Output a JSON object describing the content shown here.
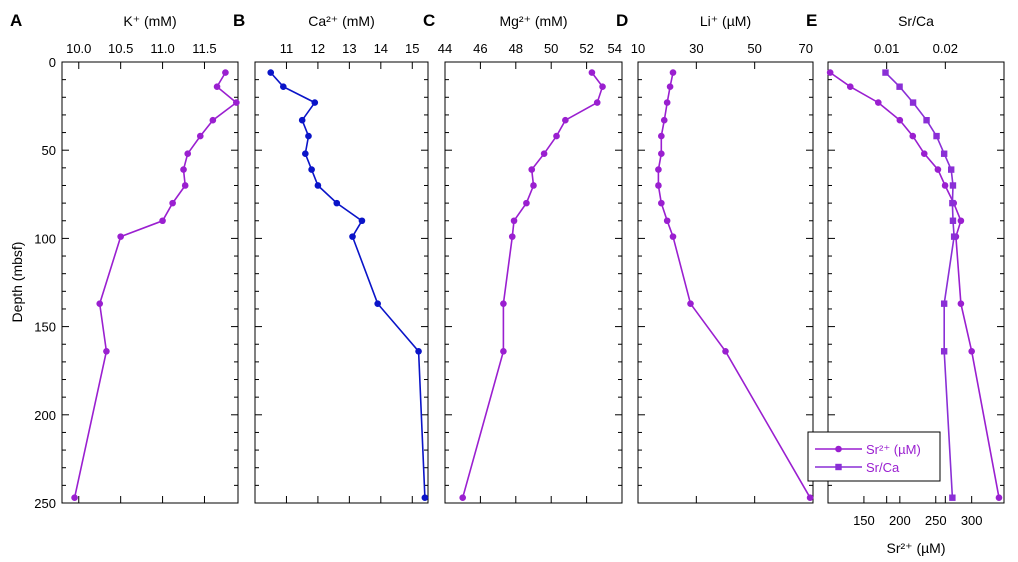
{
  "figure": {
    "y_axis_label": "Depth (mbsf)",
    "y_ticks": [
      0,
      50,
      100,
      150,
      200,
      250
    ]
  },
  "colors": {
    "purple": "#9a1fd0",
    "blue": "#0a14c8",
    "legend_text": "#9a1fd0"
  },
  "chart_data": [
    {
      "type": "line",
      "panel": "A",
      "title": "K⁺ (mM)",
      "xlim": [
        9.8,
        11.9
      ],
      "ylim": [
        250,
        0
      ],
      "x_ticks": [
        "10.0",
        "10.5",
        "11.0",
        "11.5"
      ],
      "series": [
        {
          "color": "#9a1fd0",
          "marker": "circle",
          "x": [
            11.75,
            11.65,
            11.88,
            11.6,
            11.45,
            11.3,
            11.25,
            11.27,
            11.12,
            11.0,
            10.5,
            10.25,
            10.33,
            9.95
          ],
          "y": [
            6,
            14,
            23,
            33,
            42,
            52,
            61,
            70,
            80,
            90,
            99,
            137,
            164,
            247
          ]
        }
      ]
    },
    {
      "type": "line",
      "panel": "B",
      "title": "Ca²⁺ (mM)",
      "xlim": [
        10.0,
        15.5
      ],
      "ylim": [
        250,
        0
      ],
      "x_ticks": [
        "11",
        "12",
        "13",
        "14",
        "15"
      ],
      "series": [
        {
          "color": "#0a14c8",
          "marker": "circle",
          "x": [
            10.5,
            10.9,
            11.9,
            11.5,
            11.7,
            11.6,
            11.8,
            12.0,
            12.6,
            13.4,
            13.1,
            13.9,
            15.2,
            15.4
          ],
          "y": [
            6,
            14,
            23,
            33,
            42,
            52,
            61,
            70,
            80,
            90,
            99,
            137,
            164,
            247
          ]
        }
      ]
    },
    {
      "type": "line",
      "panel": "C",
      "title": "Mg²⁺ (mM)",
      "xlim": [
        44,
        54
      ],
      "ylim": [
        250,
        0
      ],
      "x_ticks": [
        "44",
        "46",
        "48",
        "50",
        "52",
        "54"
      ],
      "series": [
        {
          "color": "#9a1fd0",
          "marker": "circle",
          "x": [
            52.3,
            52.9,
            52.6,
            50.8,
            50.3,
            49.6,
            48.9,
            49.0,
            48.6,
            47.9,
            47.8,
            47.3,
            47.3,
            45.0
          ],
          "y": [
            6,
            14,
            23,
            33,
            42,
            52,
            61,
            70,
            80,
            90,
            99,
            137,
            164,
            247
          ]
        }
      ]
    },
    {
      "type": "line",
      "panel": "D",
      "title": "Li⁺ (µM)",
      "xlim": [
        10,
        70
      ],
      "ylim": [
        250,
        0
      ],
      "x_ticks": [
        "10",
        "30",
        "50",
        "70"
      ],
      "series": [
        {
          "color": "#9a1fd0",
          "marker": "circle",
          "x": [
            22,
            21,
            20,
            19,
            18,
            18,
            17,
            17,
            18,
            20,
            22,
            28,
            40,
            69
          ],
          "y": [
            6,
            14,
            23,
            33,
            42,
            52,
            61,
            70,
            80,
            90,
            99,
            137,
            164,
            247
          ]
        }
      ]
    },
    {
      "type": "line",
      "panel": "E",
      "title": "Sr/Ca",
      "x2label": "Sr²⁺ (µM)",
      "xlim_top": [
        0.0,
        0.03
      ],
      "xlim_bottom": [
        100,
        345
      ],
      "ylim": [
        250,
        0
      ],
      "x_ticks_top": [
        "0.01",
        "0.02"
      ],
      "x_ticks_bottom": [
        "150",
        "200",
        "250",
        "300"
      ],
      "legend_position": "lower-right",
      "series": [
        {
          "name": "Sr²⁺ (µM)",
          "axis": "bottom",
          "color": "#9a1fd0",
          "marker": "circle",
          "x": [
            103,
            131,
            170,
            200,
            218,
            234,
            253,
            263,
            275,
            285,
            278,
            285,
            300,
            338
          ],
          "y": [
            6,
            14,
            23,
            33,
            42,
            52,
            61,
            70,
            80,
            90,
            99,
            137,
            164,
            247
          ]
        },
        {
          "name": "Sr/Ca",
          "axis": "top",
          "color": "#8a2fd6",
          "marker": "square",
          "x": [
            0.0098,
            0.0122,
            0.0145,
            0.0168,
            0.0185,
            0.0198,
            0.021,
            0.0213,
            0.0212,
            0.0213,
            0.0215,
            0.0198,
            0.0198,
            0.0212
          ],
          "y": [
            6,
            14,
            23,
            33,
            42,
            52,
            61,
            70,
            80,
            90,
            99,
            137,
            164,
            247
          ]
        }
      ]
    }
  ]
}
